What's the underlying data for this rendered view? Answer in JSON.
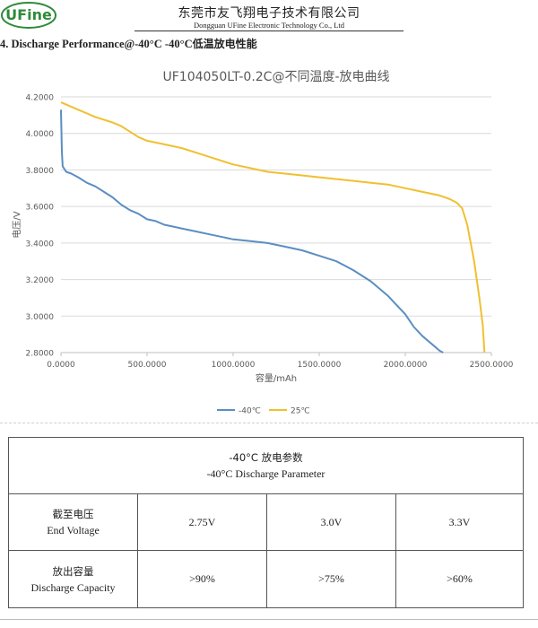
{
  "header": {
    "logo_text": "UFine",
    "company_cn": "东莞市友飞翔电子技术有限公司",
    "company_en": "Dongguan UFine Electronic Technology Co., Ltd"
  },
  "section": {
    "title_en": "4. Discharge  Performance@-40°C  -40°C",
    "title_cn": "低温放电性能"
  },
  "chart_data": {
    "type": "line",
    "title": "UF104050LT-0.2C@不同温度-放电曲线",
    "xlabel": "容量/mAh",
    "ylabel": "电压/V",
    "xlim": [
      0,
      2500
    ],
    "ylim": [
      2.8,
      4.2
    ],
    "x_ticks": [
      "0.0000",
      "500.0000",
      "1000.0000",
      "1500.0000",
      "2000.0000",
      "2500.0000"
    ],
    "y_ticks": [
      "2.8000",
      "3.0000",
      "3.2000",
      "3.4000",
      "3.6000",
      "3.8000",
      "4.0000",
      "4.2000"
    ],
    "grid": "horizontal",
    "legend_position": "bottom",
    "series": [
      {
        "name": "-40℃",
        "color": "#5b8ec2",
        "points": [
          [
            0,
            4.13
          ],
          [
            5,
            3.9
          ],
          [
            10,
            3.82
          ],
          [
            30,
            3.79
          ],
          [
            60,
            3.78
          ],
          [
            100,
            3.76
          ],
          [
            150,
            3.73
          ],
          [
            200,
            3.71
          ],
          [
            250,
            3.68
          ],
          [
            300,
            3.65
          ],
          [
            350,
            3.61
          ],
          [
            400,
            3.58
          ],
          [
            450,
            3.56
          ],
          [
            500,
            3.53
          ],
          [
            550,
            3.52
          ],
          [
            600,
            3.5
          ],
          [
            650,
            3.49
          ],
          [
            700,
            3.48
          ],
          [
            750,
            3.47
          ],
          [
            800,
            3.46
          ],
          [
            850,
            3.45
          ],
          [
            900,
            3.44
          ],
          [
            950,
            3.43
          ],
          [
            1000,
            3.42
          ],
          [
            1100,
            3.41
          ],
          [
            1200,
            3.4
          ],
          [
            1300,
            3.38
          ],
          [
            1400,
            3.36
          ],
          [
            1500,
            3.33
          ],
          [
            1600,
            3.3
          ],
          [
            1700,
            3.25
          ],
          [
            1800,
            3.19
          ],
          [
            1900,
            3.11
          ],
          [
            2000,
            3.01
          ],
          [
            2050,
            2.94
          ],
          [
            2100,
            2.89
          ],
          [
            2150,
            2.85
          ],
          [
            2200,
            2.81
          ],
          [
            2220,
            2.8
          ]
        ]
      },
      {
        "name": "25℃",
        "color": "#f0c030",
        "points": [
          [
            0,
            4.17
          ],
          [
            50,
            4.15
          ],
          [
            100,
            4.13
          ],
          [
            200,
            4.09
          ],
          [
            300,
            4.06
          ],
          [
            350,
            4.04
          ],
          [
            400,
            4.01
          ],
          [
            450,
            3.98
          ],
          [
            500,
            3.96
          ],
          [
            600,
            3.94
          ],
          [
            700,
            3.92
          ],
          [
            800,
            3.89
          ],
          [
            900,
            3.86
          ],
          [
            1000,
            3.83
          ],
          [
            1100,
            3.81
          ],
          [
            1200,
            3.79
          ],
          [
            1300,
            3.78
          ],
          [
            1400,
            3.77
          ],
          [
            1500,
            3.76
          ],
          [
            1600,
            3.75
          ],
          [
            1700,
            3.74
          ],
          [
            1800,
            3.73
          ],
          [
            1900,
            3.72
          ],
          [
            2000,
            3.7
          ],
          [
            2100,
            3.68
          ],
          [
            2200,
            3.66
          ],
          [
            2260,
            3.64
          ],
          [
            2300,
            3.62
          ],
          [
            2330,
            3.59
          ],
          [
            2360,
            3.5
          ],
          [
            2400,
            3.3
          ],
          [
            2430,
            3.1
          ],
          [
            2450,
            2.95
          ],
          [
            2460,
            2.8
          ]
        ]
      }
    ]
  },
  "table": {
    "title_cn": "-40°C 放电参数",
    "title_en": "-40°C Discharge Parameter",
    "rows": [
      {
        "label_cn": "截至电压",
        "label_en": "End Voltage",
        "values": [
          "2.75V",
          "3.0V",
          "3.3V"
        ]
      },
      {
        "label_cn": "放出容量",
        "label_en": "Discharge Capacity",
        "values": [
          ">90%",
          ">75%",
          ">60%"
        ]
      }
    ]
  }
}
